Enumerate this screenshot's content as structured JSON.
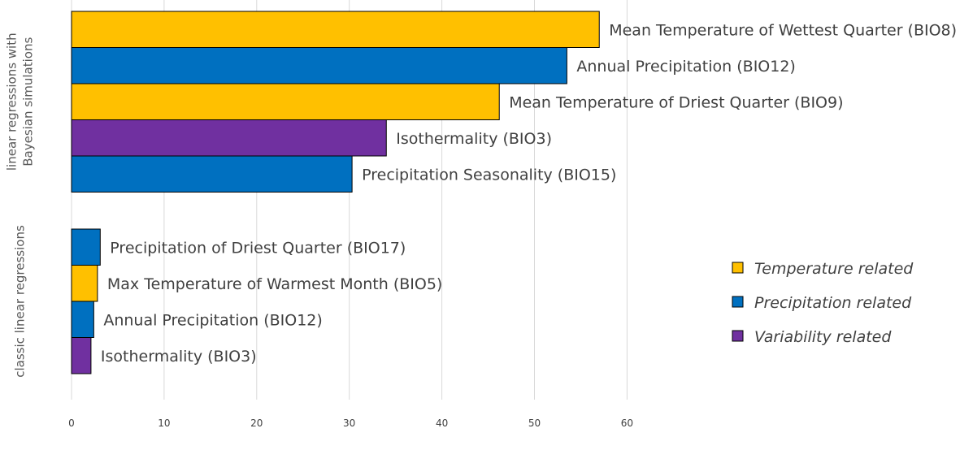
{
  "colors": {
    "temperature": "#FFC000",
    "precipitation": "#0070C0",
    "variability": "#7030A0",
    "grid": "#D9D9D9",
    "text": "#404040"
  },
  "chart_data": {
    "type": "bar",
    "orientation": "horizontal",
    "xlim": [
      0,
      60
    ],
    "xticks": [
      0,
      10,
      20,
      30,
      40,
      50,
      60
    ],
    "grid": true,
    "legend_position": "right",
    "groups": [
      {
        "label": "linear regressions with Bayesian  simulations",
        "label_lines": [
          "linear regressions with",
          "Bayesian  simulations"
        ],
        "bars": [
          {
            "label": "Mean Temperature of Wettest Quarter (BIO8)",
            "value": 57,
            "category": "temperature"
          },
          {
            "label": "Annual Precipitation (BIO12)",
            "value": 53.5,
            "category": "precipitation"
          },
          {
            "label": "Mean Temperature of Driest Quarter (BIO9)",
            "value": 46.2,
            "category": "temperature"
          },
          {
            "label": "Isothermality (BIO3)",
            "value": 34,
            "category": "variability"
          },
          {
            "label": "Precipitation Seasonality (BIO15)",
            "value": 30.3,
            "category": "precipitation"
          }
        ]
      },
      {
        "label": "classic linear regressions",
        "label_lines": [
          "classic linear regressions"
        ],
        "bars": [
          {
            "label": "Precipitation of Driest Quarter (BIO17)",
            "value": 3.1,
            "category": "precipitation"
          },
          {
            "label": "Max Temperature of Warmest Month (BIO5)",
            "value": 2.8,
            "category": "temperature"
          },
          {
            "label": "Annual Precipitation (BIO12)",
            "value": 2.4,
            "category": "precipitation"
          },
          {
            "label": "Isothermality (BIO3)",
            "value": 2.1,
            "category": "variability"
          }
        ]
      }
    ],
    "legend": [
      {
        "category": "temperature",
        "label": "Temperature  related"
      },
      {
        "category": "precipitation",
        "label": "Precipitation  related"
      },
      {
        "category": "variability",
        "label": "Variability  related"
      }
    ]
  }
}
